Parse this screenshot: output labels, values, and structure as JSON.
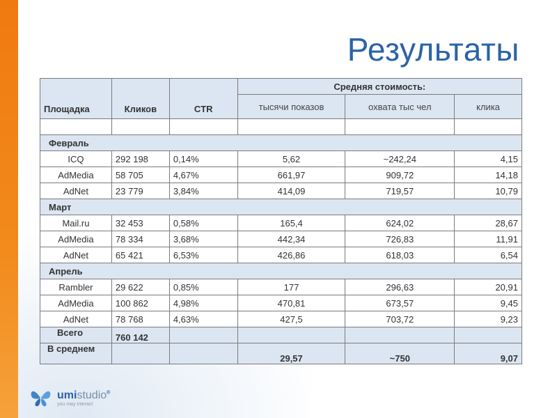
{
  "title": "Результаты",
  "header": {
    "platform": "Площадка",
    "clicks": "Кликов",
    "ctr": "CTR",
    "avg_cost": "Средняя стоимость:",
    "per_thousand_impressions": "тысячи показов",
    "per_thousand_reach": "охвата тыс чел",
    "per_click": "клика"
  },
  "groups": [
    {
      "month": "Февраль",
      "rows": [
        {
          "platform": "ICQ",
          "clicks": "292 198",
          "ctr": "0,14%",
          "cpm": "5,62",
          "reach": "~242,24",
          "cpc": "4,15"
        },
        {
          "platform": "AdMedia",
          "clicks": "58 705",
          "ctr": "4,67%",
          "cpm": "661,97",
          "reach": "909,72",
          "cpc": "14,18"
        },
        {
          "platform": "AdNet",
          "clicks": "23 779",
          "ctr": "3,84%",
          "cpm": "414,09",
          "reach": "719,57",
          "cpc": "10,79"
        }
      ]
    },
    {
      "month": "Март",
      "rows": [
        {
          "platform": "Mail.ru",
          "clicks": "32 453",
          "ctr": "0,58%",
          "cpm": "165,4",
          "reach": "624,02",
          "cpc": "28,67"
        },
        {
          "platform": "AdMedia",
          "clicks": "78 334",
          "ctr": "3,68%",
          "cpm": "442,34",
          "reach": "726,83",
          "cpc": "11,91"
        },
        {
          "platform": "AdNet",
          "clicks": "65 421",
          "ctr": "6,53%",
          "cpm": "426,86",
          "reach": "618,03",
          "cpc": "6,54"
        }
      ]
    },
    {
      "month": "Апрель",
      "rows": [
        {
          "platform": "Rambler",
          "clicks": "29 622",
          "ctr": "0,85%",
          "cpm": "177",
          "reach": "296,63",
          "cpc": "20,91"
        },
        {
          "platform": "AdMedia",
          "clicks": "100 862",
          "ctr": "4,98%",
          "cpm": "470,81",
          "reach": "673,57",
          "cpc": "9,45"
        },
        {
          "platform": "AdNet",
          "clicks": "78 768",
          "ctr": "4,63%",
          "cpm": "427,5",
          "reach": "703,72",
          "cpc": "9,23"
        }
      ]
    }
  ],
  "total": {
    "label": "Всего",
    "clicks": "760 142"
  },
  "average": {
    "label": "В среднем",
    "cpm": "29,57",
    "reach": "~750",
    "cpc": "9,07"
  },
  "logo": {
    "wordmark_main": "umi",
    "wordmark_rest": "studio",
    "registered": "®",
    "tagline": "you may interact"
  },
  "colors": {
    "accent_orange": "#f07a10",
    "title_blue": "#2b63a7",
    "header_fill": "#dce6f2"
  }
}
